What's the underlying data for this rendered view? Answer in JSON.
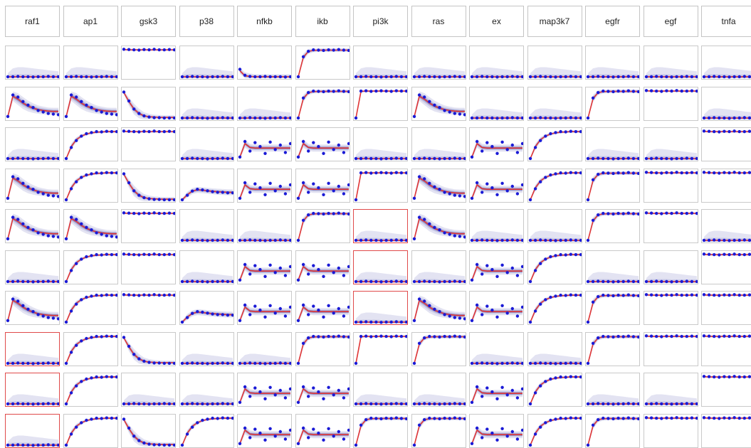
{
  "colors": {
    "data_point": "#1a1ad6",
    "fit_line": "#e03535",
    "band_outer": "#e3e3f2",
    "band_mid": "#c9c9e6",
    "band_inner": "#8f8fc4",
    "panel_border": "#c9c9c9",
    "flag_border": "#e04a4a"
  },
  "columns": [
    "raf1",
    "ap1",
    "gsk3",
    "p38",
    "nfkb",
    "ikb",
    "pi3k",
    "ras",
    "ex",
    "map3k7",
    "egfr",
    "egf",
    "tnfa"
  ],
  "chart_data": {
    "type": "line",
    "layout": "small-multiples grid (10 rows x 13 columns)",
    "x_points": 11,
    "ylim": [
      0,
      1
    ],
    "grid": false,
    "flagged_panels": [
      {
        "row": 4,
        "col": 6
      },
      {
        "row": 5,
        "col": 6
      },
      {
        "row": 6,
        "col": 6
      },
      {
        "row": 7,
        "col": 0
      },
      {
        "row": 8,
        "col": 0
      },
      {
        "row": 9,
        "col": 0
      }
    ],
    "profile_codes": [
      [
        "Z",
        "Z",
        "H",
        "Z",
        "S",
        "F",
        "Z",
        "Z",
        "Z",
        "Z",
        "Z",
        "Z",
        "Z"
      ],
      [
        "T",
        "T",
        "D",
        "Z",
        "Z",
        "F",
        "I",
        "T",
        "Z",
        "Z",
        "F",
        "H",
        "Z"
      ],
      [
        "Z",
        "R",
        "H",
        "Z",
        "N",
        "N",
        "Z",
        "Z",
        "N",
        "R",
        "Z",
        "Z",
        "H"
      ],
      [
        "T",
        "R",
        "D",
        "P",
        "N",
        "N",
        "I",
        "T",
        "N",
        "R",
        "F",
        "H",
        "H"
      ],
      [
        "T",
        "T",
        "H",
        "Z",
        "Z",
        "F",
        "Z",
        "T",
        "Z",
        "Z",
        "F",
        "H",
        "Z"
      ],
      [
        "Z",
        "R",
        "H",
        "Z",
        "N",
        "N",
        "Z",
        "Z",
        "N",
        "R",
        "Z",
        "Z",
        "H"
      ],
      [
        "T",
        "R",
        "H",
        "P",
        "N",
        "N",
        "Z",
        "T",
        "N",
        "R",
        "F",
        "H",
        "H"
      ],
      [
        "Z",
        "R",
        "D",
        "Z",
        "Z",
        "F",
        "I",
        "F",
        "Z",
        "Z",
        "F",
        "H",
        "H"
      ],
      [
        "Z",
        "R",
        "Z",
        "Z",
        "N",
        "N",
        "Z",
        "Z",
        "N",
        "R",
        "Z",
        "Z",
        "H"
      ],
      [
        "Z",
        "R",
        "D",
        "R",
        "N",
        "N",
        "F",
        "F",
        "N",
        "R",
        "F",
        "H",
        "H"
      ]
    ],
    "profiles": {
      "Z": {
        "mean": [
          0.05,
          0.05,
          0.05,
          0.05,
          0.05,
          0.05,
          0.05,
          0.05,
          0.05,
          0.05,
          0.05
        ],
        "points": [
          0.05,
          0.05,
          0.06,
          0.05,
          0.05,
          0.04,
          0.05,
          0.05,
          0.06,
          0.05,
          0.05
        ],
        "band_outer": [
          0.12,
          0.28,
          0.32,
          0.32,
          0.3,
          0.28,
          0.26,
          0.24,
          0.22,
          0.2,
          0.18
        ],
        "band_mid": [
          0.06,
          0.08,
          0.08,
          0.08,
          0.08,
          0.07,
          0.07,
          0.07,
          0.07,
          0.07,
          0.07
        ],
        "band_inner": [
          0.02,
          0.02,
          0.02,
          0.02,
          0.02,
          0.02,
          0.02,
          0.02,
          0.02,
          0.02,
          0.02
        ]
      },
      "H": {
        "mean": [
          0.96,
          0.95,
          0.95,
          0.95,
          0.95,
          0.95,
          0.95,
          0.95,
          0.95,
          0.95,
          0.95
        ],
        "points": [
          0.97,
          0.96,
          0.95,
          0.94,
          0.96,
          0.95,
          0.97,
          0.95,
          0.95,
          0.96,
          0.95
        ],
        "band_outer": [
          0.03,
          0.04,
          0.04,
          0.04,
          0.04,
          0.04,
          0.04,
          0.04,
          0.04,
          0.04,
          0.04
        ],
        "band_mid": [
          0.02,
          0.02,
          0.02,
          0.02,
          0.02,
          0.02,
          0.02,
          0.02,
          0.02,
          0.02,
          0.02
        ],
        "band_inner": [
          0.01,
          0.01,
          0.01,
          0.01,
          0.01,
          0.01,
          0.01,
          0.01,
          0.01,
          0.01,
          0.01
        ]
      },
      "F": {
        "mean": [
          0.05,
          0.7,
          0.9,
          0.93,
          0.94,
          0.94,
          0.94,
          0.94,
          0.94,
          0.94,
          0.94
        ],
        "points": [
          0.05,
          0.72,
          0.9,
          0.95,
          0.94,
          0.93,
          0.95,
          0.94,
          0.96,
          0.94,
          0.93
        ],
        "band_outer": [
          0.05,
          0.12,
          0.08,
          0.06,
          0.06,
          0.06,
          0.06,
          0.06,
          0.06,
          0.06,
          0.06
        ],
        "band_mid": [
          0.04,
          0.08,
          0.05,
          0.04,
          0.04,
          0.04,
          0.04,
          0.04,
          0.04,
          0.04,
          0.04
        ],
        "band_inner": [
          0.02,
          0.04,
          0.02,
          0.02,
          0.02,
          0.02,
          0.02,
          0.02,
          0.02,
          0.02,
          0.02
        ]
      },
      "I": {
        "mean": [
          0.05,
          0.94,
          0.95,
          0.95,
          0.95,
          0.95,
          0.95,
          0.95,
          0.95,
          0.95,
          0.95
        ],
        "points": [
          0.05,
          0.95,
          0.96,
          0.94,
          0.95,
          0.96,
          0.95,
          0.94,
          0.96,
          0.95,
          0.95
        ],
        "band_outer": [
          0.04,
          0.04,
          0.04,
          0.04,
          0.04,
          0.04,
          0.04,
          0.04,
          0.04,
          0.04,
          0.04
        ],
        "band_mid": [
          0.02,
          0.02,
          0.02,
          0.02,
          0.02,
          0.02,
          0.02,
          0.02,
          0.02,
          0.02,
          0.02
        ],
        "band_inner": [
          0.01,
          0.01,
          0.01,
          0.01,
          0.01,
          0.01,
          0.01,
          0.01,
          0.01,
          0.01,
          0.01
        ]
      },
      "R": {
        "mean": [
          0.05,
          0.45,
          0.68,
          0.8,
          0.87,
          0.91,
          0.93,
          0.94,
          0.95,
          0.95,
          0.95
        ],
        "points": [
          0.05,
          0.42,
          0.65,
          0.8,
          0.88,
          0.92,
          0.95,
          0.94,
          0.96,
          0.95,
          0.95
        ],
        "band_outer": [
          0.04,
          0.1,
          0.08,
          0.06,
          0.05,
          0.04,
          0.04,
          0.04,
          0.04,
          0.04,
          0.04
        ],
        "band_mid": [
          0.03,
          0.07,
          0.06,
          0.04,
          0.03,
          0.03,
          0.03,
          0.03,
          0.03,
          0.03,
          0.03
        ],
        "band_inner": [
          0.02,
          0.04,
          0.03,
          0.02,
          0.02,
          0.02,
          0.02,
          0.02,
          0.02,
          0.02,
          0.02
        ]
      },
      "D": {
        "mean": [
          0.9,
          0.6,
          0.35,
          0.2,
          0.12,
          0.09,
          0.08,
          0.07,
          0.07,
          0.07,
          0.07
        ],
        "points": [
          0.92,
          0.62,
          0.35,
          0.2,
          0.12,
          0.08,
          0.06,
          0.06,
          0.05,
          0.05,
          0.05
        ],
        "band_outer": [
          0.06,
          0.14,
          0.18,
          0.16,
          0.12,
          0.1,
          0.08,
          0.08,
          0.07,
          0.07,
          0.07
        ],
        "band_mid": [
          0.04,
          0.08,
          0.1,
          0.08,
          0.06,
          0.05,
          0.04,
          0.04,
          0.04,
          0.04,
          0.04
        ],
        "band_inner": [
          0.02,
          0.04,
          0.05,
          0.04,
          0.03,
          0.02,
          0.02,
          0.02,
          0.02,
          0.02,
          0.02
        ]
      },
      "T": {
        "mean": [
          0.1,
          0.78,
          0.68,
          0.55,
          0.45,
          0.38,
          0.33,
          0.3,
          0.28,
          0.27,
          0.27
        ],
        "points": [
          0.1,
          0.82,
          0.75,
          0.6,
          0.48,
          0.4,
          0.3,
          0.25,
          0.2,
          0.18,
          0.16
        ],
        "band_outer": [
          0.08,
          0.16,
          0.2,
          0.2,
          0.18,
          0.16,
          0.14,
          0.13,
          0.12,
          0.12,
          0.12
        ],
        "band_mid": [
          0.05,
          0.1,
          0.12,
          0.12,
          0.1,
          0.09,
          0.08,
          0.08,
          0.07,
          0.07,
          0.07
        ],
        "band_inner": [
          0.03,
          0.05,
          0.06,
          0.06,
          0.05,
          0.05,
          0.04,
          0.04,
          0.04,
          0.04,
          0.04
        ]
      },
      "N": {
        "mean": [
          0.1,
          0.55,
          0.42,
          0.4,
          0.4,
          0.4,
          0.4,
          0.4,
          0.4,
          0.4,
          0.4
        ],
        "points": [
          0.1,
          0.62,
          0.3,
          0.58,
          0.45,
          0.22,
          0.6,
          0.35,
          0.5,
          0.25,
          0.55
        ],
        "band_outer": [
          0.08,
          0.14,
          0.12,
          0.12,
          0.12,
          0.12,
          0.12,
          0.12,
          0.12,
          0.12,
          0.12
        ],
        "band_mid": [
          0.05,
          0.08,
          0.07,
          0.07,
          0.07,
          0.07,
          0.07,
          0.07,
          0.07,
          0.07,
          0.07
        ],
        "band_inner": [
          0.03,
          0.04,
          0.04,
          0.04,
          0.04,
          0.04,
          0.04,
          0.04,
          0.04,
          0.04,
          0.04
        ]
      },
      "S": {
        "mean": [
          0.25,
          0.08,
          0.06,
          0.05,
          0.05,
          0.05,
          0.05,
          0.05,
          0.05,
          0.05,
          0.05
        ],
        "points": [
          0.3,
          0.1,
          0.06,
          0.05,
          0.05,
          0.06,
          0.05,
          0.05,
          0.05,
          0.04,
          0.05
        ],
        "band_outer": [
          0.1,
          0.12,
          0.1,
          0.08,
          0.08,
          0.08,
          0.08,
          0.08,
          0.08,
          0.08,
          0.08
        ],
        "band_mid": [
          0.06,
          0.06,
          0.05,
          0.05,
          0.05,
          0.05,
          0.05,
          0.05,
          0.05,
          0.05,
          0.05
        ],
        "band_inner": [
          0.03,
          0.03,
          0.02,
          0.02,
          0.02,
          0.02,
          0.02,
          0.02,
          0.02,
          0.02,
          0.02
        ]
      },
      "P": {
        "mean": [
          0.05,
          0.22,
          0.34,
          0.38,
          0.37,
          0.35,
          0.33,
          0.32,
          0.31,
          0.3,
          0.3
        ],
        "points": [
          0.05,
          0.2,
          0.34,
          0.4,
          0.38,
          0.35,
          0.32,
          0.3,
          0.3,
          0.28,
          0.28
        ],
        "band_outer": [
          0.05,
          0.1,
          0.1,
          0.1,
          0.1,
          0.1,
          0.1,
          0.1,
          0.1,
          0.1,
          0.1
        ],
        "band_mid": [
          0.04,
          0.06,
          0.06,
          0.06,
          0.06,
          0.06,
          0.06,
          0.06,
          0.06,
          0.06,
          0.06
        ],
        "band_inner": [
          0.02,
          0.03,
          0.03,
          0.03,
          0.03,
          0.03,
          0.03,
          0.03,
          0.03,
          0.03,
          0.03
        ]
      }
    }
  }
}
